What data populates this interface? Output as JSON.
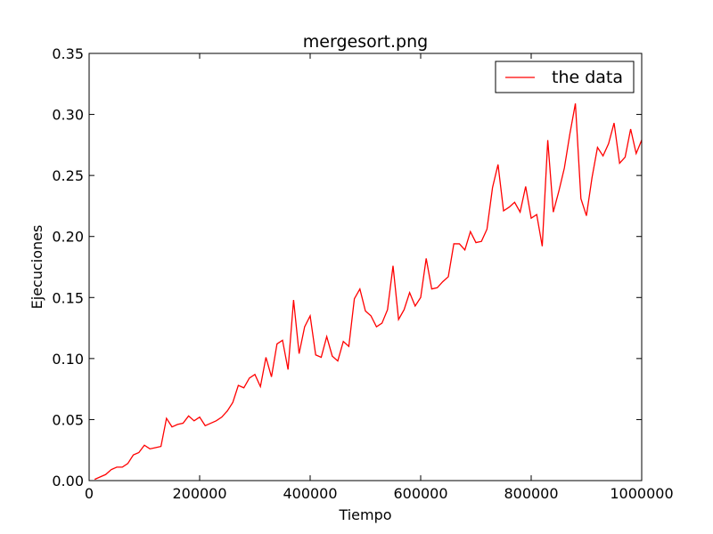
{
  "chart_data": {
    "type": "line",
    "title": "mergesort.png",
    "xlabel": "Tiempo",
    "ylabel": "Ejecuciones",
    "xlim": [
      0,
      1000000
    ],
    "ylim": [
      0,
      0.35
    ],
    "xticks": [
      0,
      200000,
      400000,
      600000,
      800000,
      1000000
    ],
    "xtick_labels": [
      "0",
      "200000",
      "400000",
      "600000",
      "800000",
      "1000000"
    ],
    "yticks": [
      0,
      0.05,
      0.1,
      0.15,
      0.2,
      0.25,
      0.3,
      0.35
    ],
    "ytick_labels": [
      "0.00",
      "0.05",
      "0.10",
      "0.15",
      "0.20",
      "0.25",
      "0.30",
      "0.35"
    ],
    "grid": false,
    "legend": {
      "position": "top-right",
      "entries": [
        "the data"
      ]
    },
    "series": [
      {
        "name": "the data",
        "color": "#ff0000",
        "x": [
          10000,
          20000,
          30000,
          40000,
          50000,
          60000,
          70000,
          80000,
          90000,
          100000,
          110000,
          120000,
          130000,
          140000,
          150000,
          160000,
          170000,
          180000,
          190000,
          200000,
          210000,
          220000,
          230000,
          240000,
          250000,
          260000,
          270000,
          280000,
          290000,
          300000,
          310000,
          320000,
          330000,
          340000,
          350000,
          360000,
          370000,
          380000,
          390000,
          400000,
          410000,
          420000,
          430000,
          440000,
          450000,
          460000,
          470000,
          480000,
          490000,
          500000,
          510000,
          520000,
          530000,
          540000,
          550000,
          560000,
          570000,
          580000,
          590000,
          600000,
          610000,
          620000,
          630000,
          640000,
          650000,
          660000,
          670000,
          680000,
          690000,
          700000,
          710000,
          720000,
          730000,
          740000,
          750000,
          760000,
          770000,
          780000,
          790000,
          800000,
          810000,
          820000,
          830000,
          840000,
          850000,
          860000,
          870000,
          880000,
          890000,
          900000,
          910000,
          920000,
          930000,
          940000,
          950000,
          960000,
          970000,
          980000,
          990000,
          1000000
        ],
        "y": [
          0.001,
          0.003,
          0.005,
          0.009,
          0.011,
          0.011,
          0.014,
          0.021,
          0.023,
          0.029,
          0.026,
          0.027,
          0.028,
          0.051,
          0.044,
          0.046,
          0.047,
          0.053,
          0.049,
          0.052,
          0.045,
          0.047,
          0.049,
          0.052,
          0.057,
          0.064,
          0.078,
          0.076,
          0.084,
          0.087,
          0.077,
          0.101,
          0.085,
          0.112,
          0.115,
          0.091,
          0.148,
          0.104,
          0.126,
          0.135,
          0.103,
          0.101,
          0.118,
          0.102,
          0.098,
          0.114,
          0.11,
          0.149,
          0.157,
          0.139,
          0.135,
          0.126,
          0.129,
          0.14,
          0.176,
          0.132,
          0.14,
          0.154,
          0.143,
          0.15,
          0.182,
          0.157,
          0.158,
          0.163,
          0.167,
          0.194,
          0.194,
          0.189,
          0.204,
          0.195,
          0.196,
          0.206,
          0.24,
          0.259,
          0.221,
          0.224,
          0.228,
          0.22,
          0.241,
          0.215,
          0.218,
          0.192,
          0.279,
          0.22,
          0.237,
          0.256,
          0.284,
          0.309,
          0.231,
          0.217,
          0.248,
          0.273,
          0.266,
          0.276,
          0.293,
          0.26,
          0.265,
          0.288,
          0.268,
          0.279
        ]
      }
    ]
  }
}
